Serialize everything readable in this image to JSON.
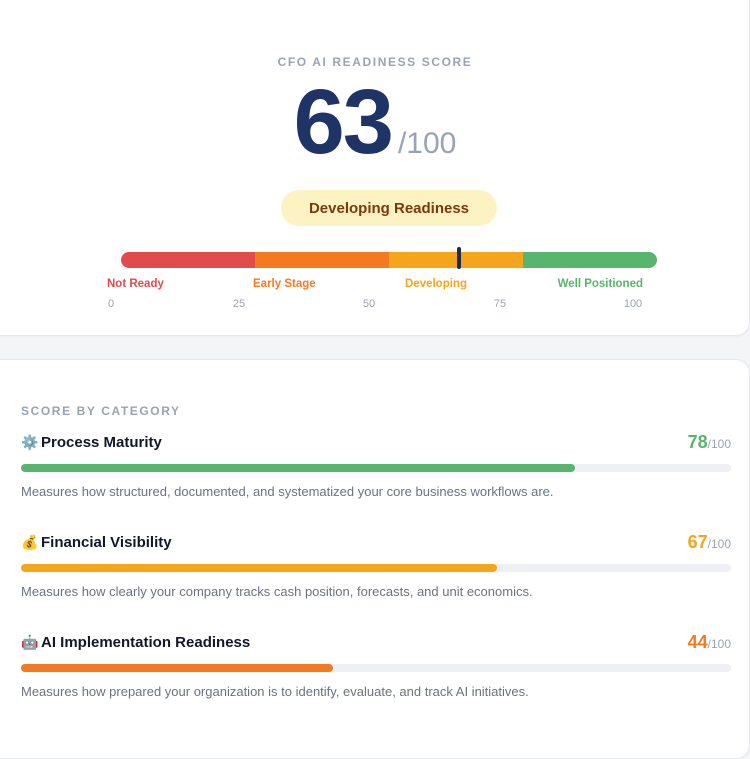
{
  "score_card": {
    "eyebrow": "CFO AI READINESS SCORE",
    "score": "63",
    "score_value": 63,
    "max": "/100",
    "status": "Developing Readiness",
    "zones": [
      {
        "label": "Not Ready",
        "color": "#e24b4b"
      },
      {
        "label": "Early Stage",
        "color": "#f37a21"
      },
      {
        "label": "Developing",
        "color": "#f4a51c"
      },
      {
        "label": "Well Positioned",
        "color": "#58b56d"
      }
    ],
    "ticks": [
      "0",
      "25",
      "50",
      "75",
      "100"
    ]
  },
  "categories": {
    "eyebrow": "SCORE BY CATEGORY",
    "items": [
      {
        "icon": "gear-icon",
        "glyph": "⚙️",
        "title": "Process Maturity",
        "score": "78",
        "score_value": 78,
        "max": "/100",
        "color": "#58b56d",
        "description": "Measures how structured, documented, and systematized your core business workflows are."
      },
      {
        "icon": "money-bag-icon",
        "glyph": "💰",
        "title": "Financial Visibility",
        "score": "67",
        "score_value": 67,
        "max": "/100",
        "color": "#f4a51c",
        "description": "Measures how clearly your company tracks cash position, forecasts, and unit economics."
      },
      {
        "icon": "robot-icon",
        "glyph": "🤖",
        "title": "AI Implementation Readiness",
        "score": "44",
        "score_value": 44,
        "max": "/100",
        "color": "#f37a21",
        "description": "Measures how prepared your organization is to identify, evaluate, and track AI initiatives."
      }
    ]
  }
}
